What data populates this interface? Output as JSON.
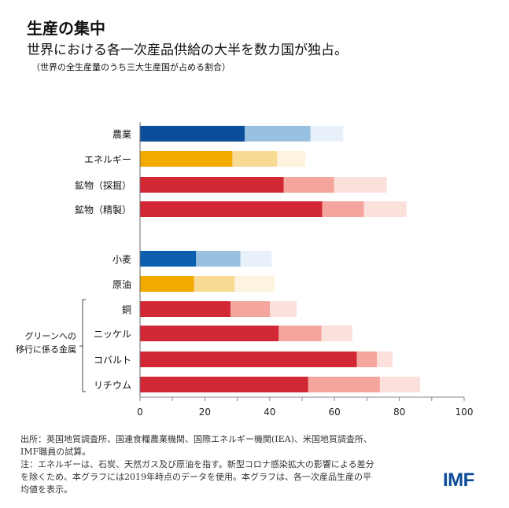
{
  "header": {
    "title": "生産の集中",
    "subtitle": "世界における各一次産品供給の大半を数カ国が独占。",
    "note": "（世界の全生産量のうち三大生産国が占める割合）"
  },
  "chart_data": {
    "type": "bar",
    "orientation": "horizontal",
    "stacked": true,
    "categories": [
      "農業",
      "エネルギー",
      "鉱物（採掘）",
      "鉱物（精製）",
      "小麦",
      "原油",
      "銅",
      "ニッケル",
      "コバルト",
      "リチウム"
    ],
    "series": [
      {
        "values": [
          32.3,
          28.5,
          44.3,
          56.2,
          17.3,
          16.7,
          27.9,
          42.8,
          66.9,
          51.9
        ]
      },
      {
        "values": [
          20.3,
          13.8,
          15.6,
          12.9,
          13.7,
          12.5,
          12.2,
          13.2,
          6.2,
          22.1
        ]
      },
      {
        "values": [
          10.1,
          8.7,
          16.2,
          13.1,
          9.6,
          12.3,
          8.2,
          9.5,
          4.8,
          12.4
        ]
      }
    ],
    "category_colors": {
      "農業": [
        "#0b4f9c",
        "#97c0e1",
        "#e8f0f9"
      ],
      "エネルギー": [
        "#f2a900",
        "#f8da93",
        "#fdf3de"
      ],
      "鉱物（採掘）": [
        "#d22735",
        "#f4a59d",
        "#fbe0db"
      ],
      "鉱物（精製）": [
        "#d22735",
        "#f4a59d",
        "#fbe0db"
      ],
      "小麦": [
        "#0b5fae",
        "#97c0e1",
        "#e8f0f9"
      ],
      "原油": [
        "#f2a900",
        "#f8da93",
        "#fdf3de"
      ],
      "銅": [
        "#d22735",
        "#f4a59d",
        "#fbe0db"
      ],
      "ニッケル": [
        "#d22735",
        "#f4a59d",
        "#fbe0db"
      ],
      "コバルト": [
        "#d22735",
        "#f4a59d",
        "#fbe0db"
      ],
      "リチウム": [
        "#d22735",
        "#f4a59d",
        "#fbe0db"
      ]
    },
    "group_label": [
      "グリーンへの",
      "移行に係る金属"
    ],
    "xlim": [
      0,
      100
    ],
    "xticks": [
      0,
      20,
      40,
      60,
      80,
      100
    ],
    "grid": false
  },
  "footer": {
    "source_lines": [
      "出所：英国地質調査所、国連食糧農業機関、国際エネルギー機関(IEA)、米国地質調査所、",
      "IMF職員の試算。"
    ],
    "note_lines": [
      "注：エネルギーは、石炭、天然ガス及び原油を指す。新型コロナ感染拡大の影響による差分",
      "を除くため、本グラフには2019年時点のデータを使用。本グラフは、各一次産品生産の平",
      "均値を表示。"
    ],
    "logo": "IMF"
  }
}
